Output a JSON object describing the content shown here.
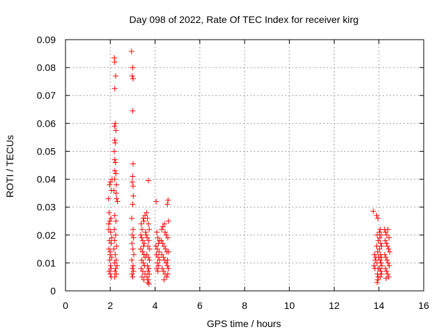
{
  "chart_data": {
    "type": "scatter",
    "title": "Day 098 of 2022, Rate Of TEC Index for receiver kirg",
    "xlabel": "GPS time / hours",
    "ylabel": "ROTI / TECUs",
    "xlim": [
      0,
      16
    ],
    "ylim": [
      0,
      0.09
    ],
    "grid": true,
    "marker": "+",
    "color": "#ff0000",
    "x_ticks": [
      "0",
      "2",
      "4",
      "6",
      "8",
      "10",
      "12",
      "14",
      "16"
    ],
    "y_ticks": [
      "0",
      "0.01",
      "0.02",
      "0.03",
      "0.04",
      "0.05",
      "0.06",
      "0.07",
      "0.08",
      "0.09"
    ],
    "series": [
      {
        "name": "ROTI",
        "points": [
          [
            1.92,
            0.033
          ],
          [
            1.97,
            0.038
          ],
          [
            2.0,
            0.039
          ],
          [
            2.05,
            0.036
          ],
          [
            2.08,
            0.04
          ],
          [
            1.95,
            0.028
          ],
          [
            1.98,
            0.025
          ],
          [
            2.03,
            0.026
          ],
          [
            1.93,
            0.022
          ],
          [
            2.02,
            0.021
          ],
          [
            1.96,
            0.018
          ],
          [
            2.04,
            0.017
          ],
          [
            1.94,
            0.015
          ],
          [
            2.0,
            0.014
          ],
          [
            2.06,
            0.012
          ],
          [
            1.97,
            0.011
          ],
          [
            2.01,
            0.009
          ],
          [
            2.03,
            0.008
          ],
          [
            1.95,
            0.007
          ],
          [
            2.0,
            0.006
          ],
          [
            2.04,
            0.005
          ],
          [
            1.99,
            0.013
          ],
          [
            2.07,
            0.019
          ],
          [
            1.93,
            0.024
          ],
          [
            2.18,
            0.0835
          ],
          [
            2.2,
            0.082
          ],
          [
            2.24,
            0.077
          ],
          [
            2.2,
            0.0725
          ],
          [
            2.22,
            0.06
          ],
          [
            2.19,
            0.059
          ],
          [
            2.25,
            0.0575
          ],
          [
            2.2,
            0.054
          ],
          [
            2.22,
            0.053
          ],
          [
            2.18,
            0.05
          ],
          [
            2.2,
            0.047
          ],
          [
            2.23,
            0.046
          ],
          [
            2.2,
            0.043
          ],
          [
            2.25,
            0.042
          ],
          [
            2.19,
            0.04
          ],
          [
            2.27,
            0.038
          ],
          [
            2.16,
            0.036
          ],
          [
            2.26,
            0.035
          ],
          [
            2.28,
            0.033
          ],
          [
            2.32,
            0.032
          ],
          [
            2.2,
            0.027
          ],
          [
            2.25,
            0.025
          ],
          [
            2.18,
            0.022
          ],
          [
            2.24,
            0.02
          ],
          [
            2.2,
            0.018
          ],
          [
            2.28,
            0.016
          ],
          [
            2.16,
            0.015
          ],
          [
            2.22,
            0.013
          ],
          [
            2.26,
            0.011
          ],
          [
            2.19,
            0.01
          ],
          [
            2.3,
            0.009
          ],
          [
            2.24,
            0.008
          ],
          [
            2.21,
            0.007
          ],
          [
            2.27,
            0.006
          ],
          [
            2.2,
            0.005
          ],
          [
            2.95,
            0.0858
          ],
          [
            3.0,
            0.08
          ],
          [
            2.98,
            0.077
          ],
          [
            3.02,
            0.076
          ],
          [
            3.0,
            0.0645
          ],
          [
            3.02,
            0.0455
          ],
          [
            3.0,
            0.041
          ],
          [
            2.98,
            0.039
          ],
          [
            3.02,
            0.0375
          ],
          [
            3.03,
            0.034
          ],
          [
            3.0,
            0.031
          ],
          [
            2.96,
            0.026
          ],
          [
            3.02,
            0.022
          ],
          [
            2.98,
            0.02
          ],
          [
            3.04,
            0.019
          ],
          [
            2.97,
            0.017
          ],
          [
            3.01,
            0.015
          ],
          [
            3.05,
            0.013
          ],
          [
            2.96,
            0.011
          ],
          [
            3.02,
            0.009
          ],
          [
            2.99,
            0.008
          ],
          [
            3.04,
            0.007
          ],
          [
            2.97,
            0.006
          ],
          [
            3.0,
            0.005
          ],
          [
            3.38,
            0.024
          ],
          [
            3.42,
            0.022
          ],
          [
            3.47,
            0.026
          ],
          [
            3.5,
            0.025
          ],
          [
            3.55,
            0.027
          ],
          [
            3.4,
            0.019
          ],
          [
            3.45,
            0.018
          ],
          [
            3.52,
            0.017
          ],
          [
            3.58,
            0.021
          ],
          [
            3.36,
            0.015
          ],
          [
            3.44,
            0.014
          ],
          [
            3.5,
            0.013
          ],
          [
            3.56,
            0.012
          ],
          [
            3.4,
            0.011
          ],
          [
            3.47,
            0.01
          ],
          [
            3.53,
            0.009
          ],
          [
            3.38,
            0.008
          ],
          [
            3.45,
            0.007
          ],
          [
            3.55,
            0.006
          ],
          [
            3.42,
            0.005
          ],
          [
            3.5,
            0.004
          ],
          [
            3.48,
            0.016
          ],
          [
            3.6,
            0.02
          ],
          [
            3.36,
            0.02
          ],
          [
            3.7,
            0.0395
          ],
          [
            3.62,
            0.028
          ],
          [
            3.66,
            0.026
          ],
          [
            3.7,
            0.024
          ],
          [
            3.74,
            0.022
          ],
          [
            3.65,
            0.019
          ],
          [
            3.72,
            0.018
          ],
          [
            3.68,
            0.016
          ],
          [
            3.76,
            0.015
          ],
          [
            3.63,
            0.013
          ],
          [
            3.7,
            0.012
          ],
          [
            3.75,
            0.011
          ],
          [
            3.66,
            0.009
          ],
          [
            3.72,
            0.008
          ],
          [
            3.68,
            0.007
          ],
          [
            3.74,
            0.006
          ],
          [
            3.64,
            0.005
          ],
          [
            3.7,
            0.004
          ],
          [
            3.67,
            0.003
          ],
          [
            3.73,
            0.0025
          ],
          [
            4.05,
            0.032
          ],
          [
            4.08,
            0.021
          ],
          [
            4.12,
            0.019
          ],
          [
            4.15,
            0.017
          ],
          [
            4.1,
            0.015
          ],
          [
            4.18,
            0.014
          ],
          [
            4.06,
            0.013
          ],
          [
            4.14,
            0.012
          ],
          [
            4.2,
            0.011
          ],
          [
            4.1,
            0.01
          ],
          [
            4.16,
            0.009
          ],
          [
            4.08,
            0.008
          ],
          [
            4.13,
            0.007
          ],
          [
            4.04,
            0.016
          ],
          [
            4.2,
            0.018
          ],
          [
            4.3,
            0.022
          ],
          [
            4.35,
            0.023
          ],
          [
            4.42,
            0.024
          ],
          [
            4.45,
            0.021
          ],
          [
            4.5,
            0.02
          ],
          [
            4.28,
            0.018
          ],
          [
            4.34,
            0.017
          ],
          [
            4.4,
            0.016
          ],
          [
            4.47,
            0.015
          ],
          [
            4.53,
            0.014
          ],
          [
            4.3,
            0.013
          ],
          [
            4.37,
            0.012
          ],
          [
            4.43,
            0.011
          ],
          [
            4.5,
            0.01
          ],
          [
            4.55,
            0.009
          ],
          [
            4.32,
            0.008
          ],
          [
            4.38,
            0.007
          ],
          [
            4.45,
            0.006
          ],
          [
            4.52,
            0.005
          ],
          [
            4.4,
            0.004
          ],
          [
            4.55,
            0.031
          ],
          [
            4.58,
            0.0325
          ],
          [
            4.6,
            0.025
          ],
          [
            4.57,
            0.019
          ],
          [
            4.6,
            0.014
          ],
          [
            4.56,
            0.011
          ],
          [
            4.59,
            0.008
          ],
          [
            4.57,
            0.006
          ],
          [
            13.75,
            0.0285
          ],
          [
            13.8,
            0.013
          ],
          [
            13.83,
            0.011
          ],
          [
            13.78,
            0.009
          ],
          [
            13.82,
            0.008
          ],
          [
            13.86,
            0.012
          ],
          [
            13.9,
            0.027
          ],
          [
            13.95,
            0.026
          ],
          [
            13.92,
            0.02
          ],
          [
            13.97,
            0.018
          ],
          [
            13.9,
            0.016
          ],
          [
            13.94,
            0.014
          ],
          [
            13.98,
            0.012
          ],
          [
            13.91,
            0.01
          ],
          [
            13.96,
            0.008
          ],
          [
            13.93,
            0.006
          ],
          [
            13.97,
            0.005
          ],
          [
            13.95,
            0.004
          ],
          [
            13.92,
            0.003
          ],
          [
            14.02,
            0.021
          ],
          [
            14.06,
            0.022
          ],
          [
            14.1,
            0.02
          ],
          [
            14.04,
            0.019
          ],
          [
            14.08,
            0.017
          ],
          [
            14.12,
            0.016
          ],
          [
            14.03,
            0.015
          ],
          [
            14.07,
            0.013
          ],
          [
            14.11,
            0.012
          ],
          [
            14.05,
            0.011
          ],
          [
            14.09,
            0.01
          ],
          [
            14.13,
            0.009
          ],
          [
            14.04,
            0.008
          ],
          [
            14.08,
            0.007
          ],
          [
            14.12,
            0.006
          ],
          [
            14.06,
            0.005
          ],
          [
            14.25,
            0.022
          ],
          [
            14.3,
            0.021
          ],
          [
            14.35,
            0.02
          ],
          [
            14.4,
            0.022
          ],
          [
            14.45,
            0.019
          ],
          [
            14.28,
            0.018
          ],
          [
            14.33,
            0.017
          ],
          [
            14.38,
            0.016
          ],
          [
            14.43,
            0.015
          ],
          [
            14.48,
            0.014
          ],
          [
            14.26,
            0.013
          ],
          [
            14.31,
            0.012
          ],
          [
            14.36,
            0.011
          ],
          [
            14.41,
            0.01
          ],
          [
            14.46,
            0.009
          ],
          [
            14.29,
            0.008
          ],
          [
            14.34,
            0.007
          ],
          [
            14.39,
            0.006
          ],
          [
            14.44,
            0.005
          ],
          [
            14.32,
            0.0045
          ]
        ]
      }
    ]
  }
}
